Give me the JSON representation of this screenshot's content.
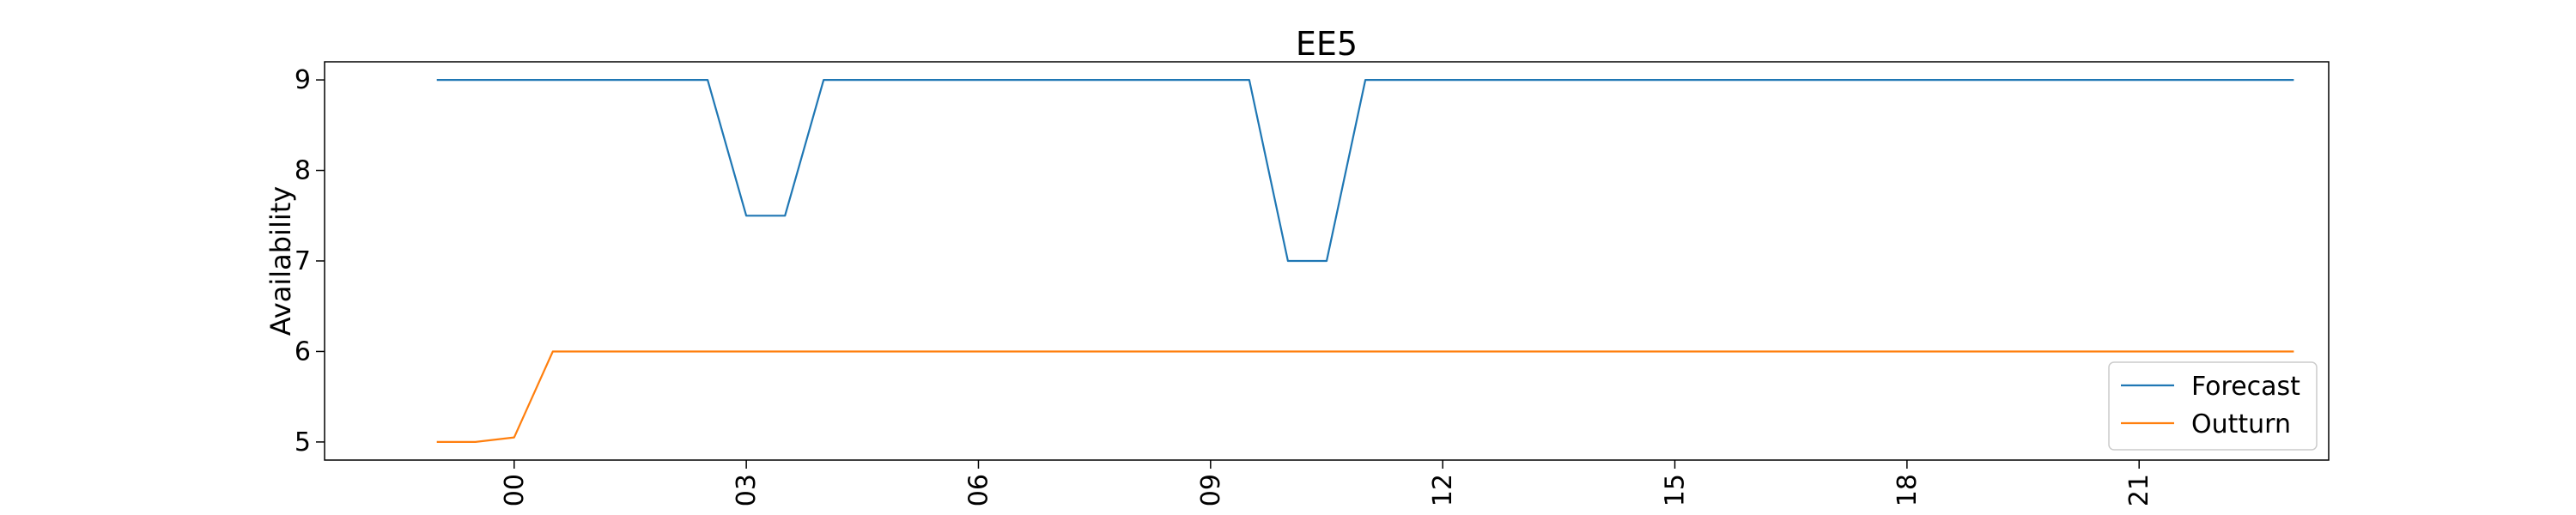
{
  "chart_data": {
    "type": "line",
    "title": "EE5",
    "xlabel": "",
    "ylabel": "Availability",
    "ylim": [
      4.8,
      9.2
    ],
    "xlim": [
      -2.45,
      23.45
    ],
    "x_unit": "hour",
    "yticks": [
      5,
      6,
      7,
      8,
      9
    ],
    "xticks": [
      {
        "value": 0,
        "label": "00"
      },
      {
        "value": 3,
        "label": "03"
      },
      {
        "value": 6,
        "label": "06"
      },
      {
        "value": 9,
        "label": "09"
      },
      {
        "value": 12,
        "label": "12"
      },
      {
        "value": 15,
        "label": "15"
      },
      {
        "value": 18,
        "label": "18"
      },
      {
        "value": 21,
        "label": "21"
      }
    ],
    "grid": false,
    "legend_position": "lower right",
    "series": [
      {
        "name": "Forecast",
        "color": "#1f77b4",
        "points": [
          [
            -1.0,
            9
          ],
          [
            2.5,
            9
          ],
          [
            3.0,
            7.5
          ],
          [
            3.5,
            7.5
          ],
          [
            4.0,
            9
          ],
          [
            9.5,
            9
          ],
          [
            10.0,
            7.0
          ],
          [
            10.5,
            7.0
          ],
          [
            11.0,
            9
          ],
          [
            23.0,
            9
          ]
        ]
      },
      {
        "name": "Outturn",
        "color": "#ff7f0e",
        "points": [
          [
            -1.0,
            5.0
          ],
          [
            -0.5,
            5.0
          ],
          [
            0.0,
            5.05
          ],
          [
            0.5,
            6.0
          ],
          [
            23.0,
            6.0
          ]
        ]
      }
    ]
  }
}
